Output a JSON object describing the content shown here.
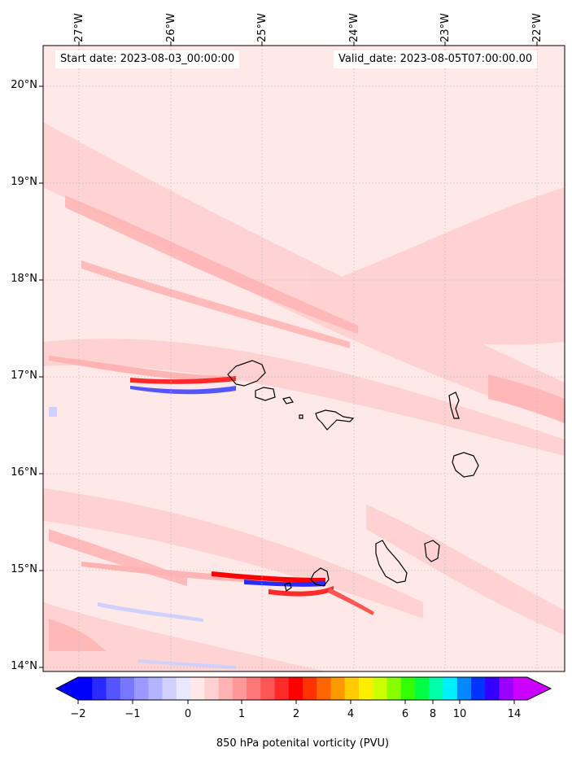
{
  "map": {
    "start_date_label": "Start date: 2023-08-03_00:00:00",
    "valid_date_label": "Valid_date: 2023-08-05T07:00:00.00",
    "lon_labels": [
      "27°W",
      "26°W",
      "25°W",
      "24°W",
      "23°W",
      "22°W"
    ],
    "lat_labels": [
      "20°N",
      "19°N",
      "18°N",
      "17°N",
      "16°N",
      "15°N",
      "14°N"
    ],
    "background_color": "#ffe8e8",
    "coastline_color": "#000000",
    "grid": "dotted"
  },
  "colorbar": {
    "title": "850 hPa potenital vorticity (PVU)",
    "tick_labels": [
      "−2",
      "−1",
      "0",
      "1",
      "2",
      "4",
      "6",
      "8",
      "10",
      "14"
    ],
    "colors": [
      "#0000ff",
      "#2a2aff",
      "#5555ff",
      "#7777ff",
      "#9999ff",
      "#b3b3ff",
      "#d0d0ff",
      "#e8e8ff",
      "#ffe8e8",
      "#ffd0d0",
      "#ffb3b3",
      "#ff9999",
      "#ff7777",
      "#ff5555",
      "#ff2a2a",
      "#ff0000",
      "#ff3300",
      "#ff6600",
      "#ff9900",
      "#ffcc00",
      "#ffee00",
      "#ccff00",
      "#88ff00",
      "#33ff00",
      "#00ff44",
      "#00ffaa",
      "#00eeff",
      "#0088ff",
      "#0033ff",
      "#3300ff",
      "#9900ff",
      "#cc00ff"
    ],
    "extend": "both"
  }
}
